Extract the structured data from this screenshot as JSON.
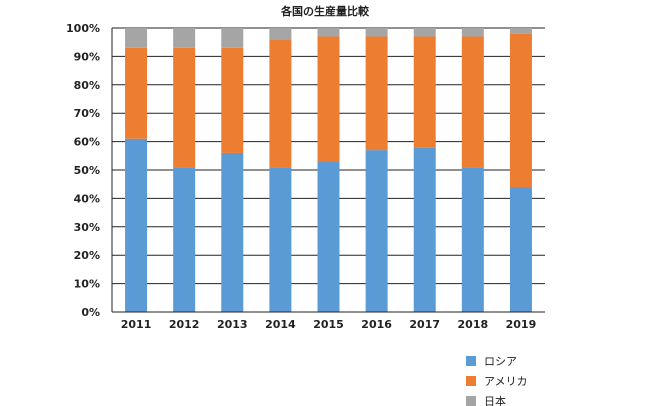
{
  "chart_data": {
    "type": "bar",
    "stacked": "percent",
    "title": "各国の生産量比較",
    "xlabel": "",
    "ylabel": "",
    "ylim": [
      0,
      100
    ],
    "y_ticks": [
      "0%",
      "10%",
      "20%",
      "30%",
      "40%",
      "50%",
      "60%",
      "70%",
      "80%",
      "90%",
      "100%"
    ],
    "categories": [
      "2011",
      "2012",
      "2013",
      "2014",
      "2015",
      "2016",
      "2017",
      "2018",
      "2019"
    ],
    "series": [
      {
        "name": "ロシア",
        "color": "#5b9bd5",
        "values": [
          61,
          51,
          56,
          51,
          53,
          57,
          58,
          51,
          44
        ]
      },
      {
        "name": "アメリカ",
        "color": "#ed7d31",
        "values": [
          32,
          42,
          37,
          45,
          44,
          40,
          39,
          46,
          54
        ]
      },
      {
        "name": "日本",
        "color": "#a5a5a5",
        "values": [
          7,
          7,
          7,
          4,
          3,
          3,
          3,
          3,
          2
        ]
      }
    ],
    "grid": true,
    "legend_position": "bottom-right"
  }
}
